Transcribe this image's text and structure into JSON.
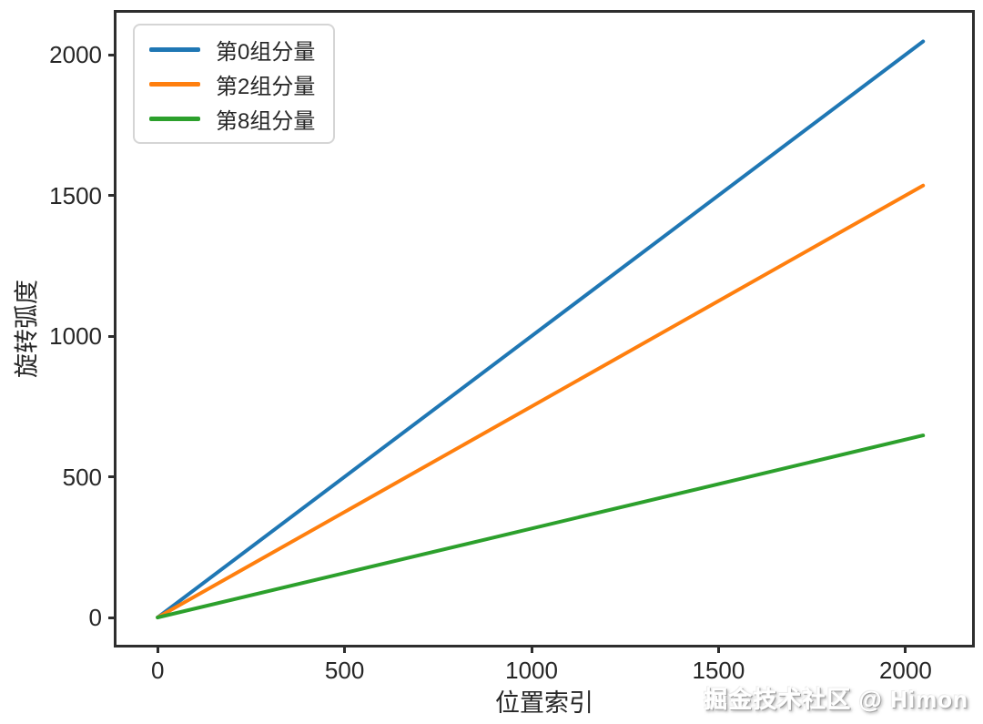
{
  "watermark": {
    "text": "掘金技术社区 @ Himon"
  },
  "chart_data": {
    "type": "line",
    "title": "",
    "xlabel": "位置索引",
    "ylabel": "旋转弧度",
    "xlim": [
      -110,
      2178
    ],
    "ylim": [
      -97,
      2149
    ],
    "xticks": [
      0,
      500,
      1000,
      1500,
      2000
    ],
    "yticks": [
      0,
      500,
      1000,
      1500,
      2000
    ],
    "grid": false,
    "legend_position": "upper-left",
    "axis_color": "#2e2e2e",
    "x": [
      0,
      2047
    ],
    "series": [
      {
        "name": "第0组分量",
        "color": "#1f77b4",
        "values": [
          0,
          2047
        ]
      },
      {
        "name": "第2组分量",
        "color": "#ff7f0e",
        "values": [
          0,
          1535
        ]
      },
      {
        "name": "第8组分量",
        "color": "#2ca02c",
        "values": [
          0,
          647
        ]
      }
    ]
  }
}
